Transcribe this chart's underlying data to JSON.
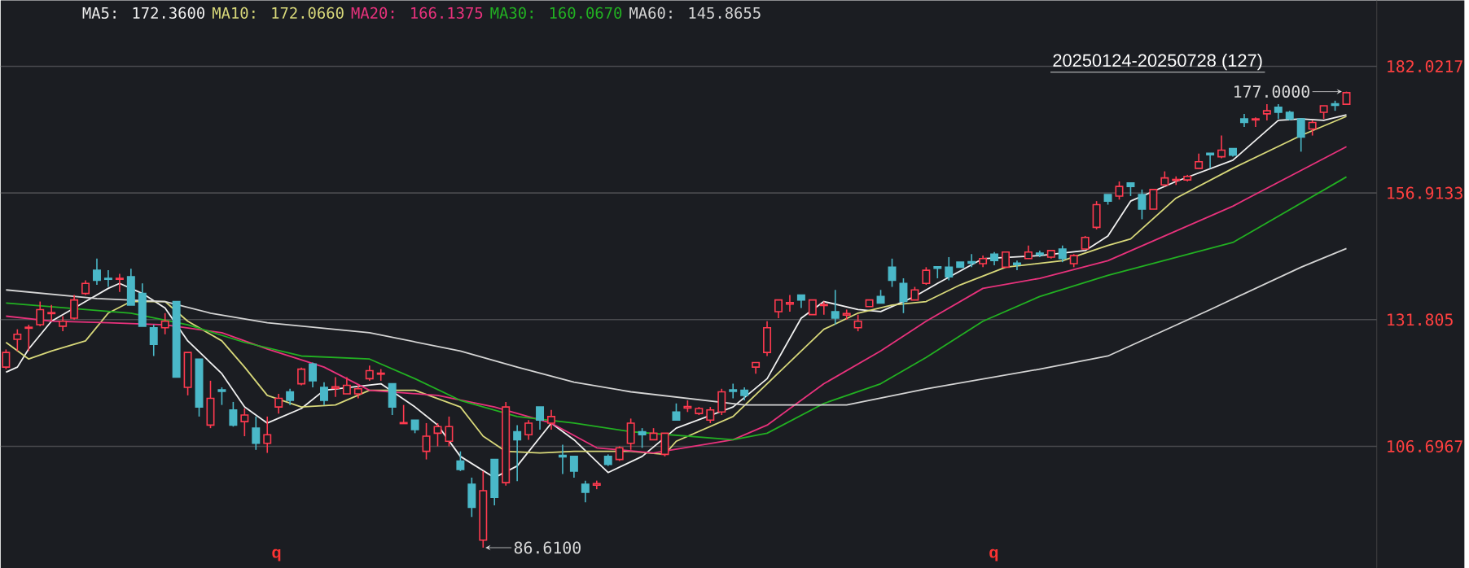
{
  "chart_data": {
    "type": "candlestick",
    "categories": [
      null,
      null,
      null,
      null,
      null,
      null,
      null,
      null,
      null,
      null,
      null,
      null,
      null,
      null,
      null,
      null,
      null,
      null,
      null,
      null,
      null,
      null,
      null,
      null,
      null,
      null,
      null,
      null,
      null,
      null,
      null,
      null,
      null,
      null,
      null,
      null,
      null,
      null,
      null,
      null,
      null,
      null,
      null,
      null,
      null,
      null,
      null,
      null,
      null,
      null,
      null,
      null,
      null,
      null,
      null,
      null,
      null,
      null,
      null,
      null,
      null,
      null,
      null,
      null,
      null,
      null,
      null,
      null,
      null,
      null,
      null,
      null,
      null,
      null,
      null,
      null,
      null,
      null,
      null,
      null,
      null,
      null,
      null,
      null,
      null,
      null,
      null,
      null,
      null,
      null,
      null,
      null,
      null,
      null,
      null,
      null,
      null,
      null,
      null,
      null,
      null,
      null,
      null,
      null,
      null,
      null,
      null,
      null,
      null,
      null,
      null,
      null,
      null,
      null,
      null,
      null,
      null,
      null,
      null
    ],
    "ohlc": [
      [
        122.4,
        125.9,
        122.0,
        125.3
      ],
      [
        127.9,
        129.9,
        125.6,
        128.9
      ],
      [
        130.1,
        130.8,
        125.6,
        130.3
      ],
      [
        130.8,
        135.4,
        130.5,
        133.8
      ],
      [
        133.0,
        134.7,
        131.5,
        133.2
      ],
      [
        130.5,
        132.5,
        129.5,
        131.5
      ],
      [
        132.1,
        136.7,
        131.8,
        135.7
      ],
      [
        137.0,
        139.6,
        136.7,
        139.0
      ],
      [
        141.6,
        143.9,
        138.7,
        139.6
      ],
      [
        140.0,
        141.6,
        138.3,
        139.8
      ],
      [
        139.8,
        140.9,
        137.3,
        140.0
      ],
      [
        140.3,
        141.9,
        134.7,
        134.7
      ],
      [
        137.0,
        139.0,
        130.5,
        130.5
      ],
      [
        130.2,
        130.8,
        124.6,
        126.9
      ],
      [
        130.2,
        133.1,
        128.9,
        131.5
      ],
      [
        135.4,
        135.4,
        120.4,
        120.4
      ],
      [
        118.4,
        125.3,
        116.8,
        125.3
      ],
      [
        124.0,
        124.0,
        112.6,
        114.5
      ],
      [
        110.9,
        119.7,
        110.3,
        116.2
      ],
      [
        117.9,
        118.4,
        114.9,
        117.6
      ],
      [
        113.9,
        115.5,
        110.6,
        110.9
      ],
      [
        111.6,
        114.2,
        108.7,
        112.9
      ],
      [
        110.3,
        112.6,
        106.0,
        107.3
      ],
      [
        107.3,
        112.6,
        105.4,
        109.0
      ],
      [
        114.5,
        117.1,
        113.2,
        116.2
      ],
      [
        117.5,
        118.1,
        114.9,
        115.8
      ],
      [
        119.1,
        122.3,
        118.8,
        122.0
      ],
      [
        123.0,
        123.3,
        118.4,
        119.7
      ],
      [
        118.4,
        119.4,
        114.9,
        115.8
      ],
      [
        118.2,
        120.4,
        116.5,
        118.5
      ],
      [
        117.1,
        120.4,
        117.1,
        118.8
      ],
      [
        117.1,
        118.8,
        116.2,
        118.1
      ],
      [
        120.1,
        122.7,
        119.7,
        121.7
      ],
      [
        121.0,
        122.0,
        119.7,
        121.2
      ],
      [
        119.1,
        119.1,
        112.9,
        114.5
      ],
      [
        111.2,
        114.9,
        111.2,
        111.4
      ],
      [
        111.9,
        111.9,
        109.3,
        110.0
      ],
      [
        105.7,
        111.3,
        104.1,
        108.7
      ],
      [
        109.3,
        111.3,
        106.7,
        110.6
      ],
      [
        107.7,
        112.6,
        106.7,
        110.6
      ],
      [
        103.8,
        105.7,
        101.8,
        102.1
      ],
      [
        99.2,
        100.5,
        92.7,
        94.6
      ],
      [
        88.1,
        101.8,
        86.61,
        97.9
      ],
      [
        104.1,
        104.1,
        95.0,
        96.6
      ],
      [
        99.5,
        115.5,
        98.9,
        114.5
      ],
      [
        109.6,
        110.9,
        99.8,
        108.0
      ],
      [
        109.0,
        111.9,
        108.0,
        111.3
      ],
      [
        114.5,
        114.5,
        110.0,
        111.9
      ],
      [
        111.3,
        113.9,
        110.0,
        112.6
      ],
      [
        104.9,
        107.0,
        101.2,
        104.6
      ],
      [
        104.7,
        104.7,
        100.5,
        101.8
      ],
      [
        99.2,
        99.9,
        95.6,
        97.6
      ],
      [
        99.0,
        99.9,
        98.2,
        99.3
      ],
      [
        104.7,
        105.1,
        102.8,
        103.1
      ],
      [
        104.1,
        106.7,
        103.8,
        106.4
      ],
      [
        107.3,
        112.2,
        106.0,
        111.3
      ],
      [
        109.6,
        110.3,
        106.4,
        109.0
      ],
      [
        108.0,
        110.3,
        108.0,
        109.3
      ],
      [
        105.1,
        109.3,
        104.7,
        109.3
      ],
      [
        113.5,
        115.2,
        111.9,
        111.9
      ],
      [
        114.3,
        115.8,
        113.5,
        114.6
      ],
      [
        113.2,
        114.5,
        112.9,
        114.2
      ],
      [
        111.9,
        114.5,
        111.3,
        113.9
      ],
      [
        113.5,
        118.1,
        112.9,
        117.5
      ],
      [
        117.9,
        119.1,
        116.2,
        117.6
      ],
      [
        117.8,
        118.4,
        115.8,
        116.8
      ],
      [
        122.4,
        123.3,
        121.1,
        123.3
      ],
      [
        125.3,
        131.5,
        124.6,
        130.2
      ],
      [
        133.4,
        135.7,
        132.1,
        135.7
      ],
      [
        134.9,
        136.7,
        133.4,
        135.2
      ],
      [
        136.7,
        136.7,
        134.1,
        135.7
      ],
      [
        132.8,
        135.7,
        132.8,
        135.7
      ],
      [
        134.6,
        135.4,
        132.8,
        134.8
      ],
      [
        133.4,
        137.7,
        130.8,
        132.1
      ],
      [
        132.7,
        133.8,
        131.8,
        133.0
      ],
      [
        130.2,
        132.8,
        129.5,
        131.5
      ],
      [
        134.4,
        135.7,
        134.4,
        135.7
      ],
      [
        136.4,
        137.7,
        135.1,
        135.1
      ],
      [
        142.2,
        143.9,
        138.3,
        139.6
      ],
      [
        139.0,
        140.0,
        133.1,
        135.4
      ],
      [
        135.7,
        138.3,
        135.7,
        137.7
      ],
      [
        139.0,
        142.2,
        138.7,
        141.6
      ],
      [
        142.3,
        142.3,
        140.0,
        142.0
      ],
      [
        142.2,
        144.2,
        139.6,
        140.3
      ],
      [
        143.2,
        143.2,
        142.2,
        142.2
      ],
      [
        143.3,
        144.8,
        142.2,
        143.0
      ],
      [
        142.9,
        144.5,
        142.2,
        143.9
      ],
      [
        144.8,
        145.2,
        142.6,
        143.5
      ],
      [
        142.2,
        145.2,
        142.2,
        145.2
      ],
      [
        143.0,
        143.5,
        141.6,
        142.7
      ],
      [
        143.9,
        146.5,
        143.9,
        145.2
      ],
      [
        145.0,
        145.5,
        144.2,
        144.7
      ],
      [
        144.2,
        145.5,
        143.9,
        145.5
      ],
      [
        145.8,
        146.5,
        143.2,
        143.9
      ],
      [
        142.9,
        144.8,
        142.2,
        144.5
      ],
      [
        145.8,
        148.4,
        145.8,
        148.1
      ],
      [
        150.1,
        155.3,
        149.7,
        154.6
      ],
      [
        156.6,
        156.6,
        154.6,
        155.3
      ],
      [
        156.3,
        159.2,
        155.6,
        158.2
      ],
      [
        158.9,
        158.9,
        156.3,
        158.2
      ],
      [
        156.6,
        157.6,
        151.7,
        153.7
      ],
      [
        153.7,
        157.6,
        153.7,
        157.6
      ],
      [
        158.5,
        161.2,
        158.2,
        159.9
      ],
      [
        159.4,
        160.2,
        158.5,
        159.6
      ],
      [
        159.5,
        160.5,
        159.2,
        160.2
      ],
      [
        161.8,
        164.7,
        161.8,
        163.1
      ],
      [
        164.8,
        164.8,
        161.8,
        164.5
      ],
      [
        164.1,
        168.3,
        163.8,
        165.4
      ],
      [
        165.7,
        165.7,
        164.1,
        164.4
      ],
      [
        171.6,
        172.6,
        170.0,
        170.9
      ],
      [
        171.4,
        171.9,
        170.0,
        171.6
      ],
      [
        172.6,
        174.5,
        171.3,
        173.2
      ],
      [
        173.9,
        174.5,
        171.6,
        172.9
      ],
      [
        172.9,
        173.2,
        171.3,
        171.6
      ],
      [
        171.6,
        171.6,
        165.1,
        168.0
      ],
      [
        169.6,
        171.3,
        168.3,
        170.9
      ],
      [
        172.9,
        174.2,
        171.6,
        174.2
      ],
      [
        174.6,
        175.2,
        173.2,
        174.3
      ],
      [
        174.5,
        177.0,
        174.5,
        176.8
      ]
    ],
    "colors": [
      "#ff3a4f",
      "#ff3a4f",
      "#ff3a4f",
      "#ff3a4f",
      "#ff3a4f",
      "#ff3a4f",
      "#ff3a4f",
      "#ff3a4f",
      "#4ab8c8",
      "#4ab8c8",
      "#ff3a4f",
      "#4ab8c8",
      "#4ab8c8",
      "#4ab8c8",
      "#ff3a4f",
      "#4ab8c8",
      "#ff3a4f",
      "#4ab8c8",
      "#ff3a4f",
      "#4ab8c8",
      "#4ab8c8",
      "#ff3a4f",
      "#4ab8c8",
      "#ff3a4f",
      "#ff3a4f",
      "#4ab8c8",
      "#ff3a4f",
      "#4ab8c8",
      "#4ab8c8",
      "#ff3a4f",
      "#ff3a4f",
      "#ff3a4f",
      "#ff3a4f",
      "#ff3a4f",
      "#4ab8c8",
      "#ff3a4f",
      "#4ab8c8",
      "#ff3a4f",
      "#ff3a4f",
      "#ff3a4f",
      "#4ab8c8",
      "#4ab8c8",
      "#ff3a4f",
      "#4ab8c8",
      "#ff3a4f",
      "#4ab8c8",
      "#ff3a4f",
      "#4ab8c8",
      "#ff3a4f",
      "#4ab8c8",
      "#4ab8c8",
      "#4ab8c8",
      "#ff3a4f",
      "#4ab8c8",
      "#ff3a4f",
      "#ff3a4f",
      "#4ab8c8",
      "#ff3a4f",
      "#ff3a4f",
      "#4ab8c8",
      "#ff3a4f",
      "#ff3a4f",
      "#ff3a4f",
      "#ff3a4f",
      "#4ab8c8",
      "#4ab8c8",
      "#ff3a4f",
      "#ff3a4f",
      "#ff3a4f",
      "#ff3a4f",
      "#4ab8c8",
      "#ff3a4f",
      "#ff3a4f",
      "#4ab8c8",
      "#ff3a4f",
      "#ff3a4f",
      "#ff3a4f",
      "#4ab8c8",
      "#4ab8c8",
      "#4ab8c8",
      "#ff3a4f",
      "#ff3a4f",
      "#4ab8c8",
      "#4ab8c8",
      "#4ab8c8",
      "#4ab8c8",
      "#ff3a4f",
      "#4ab8c8",
      "#ff3a4f",
      "#4ab8c8",
      "#ff3a4f",
      "#4ab8c8",
      "#ff3a4f",
      "#4ab8c8",
      "#ff3a4f",
      "#ff3a4f",
      "#ff3a4f",
      "#4ab8c8",
      "#ff3a4f",
      "#4ab8c8",
      "#4ab8c8",
      "#ff3a4f",
      "#ff3a4f",
      "#ff3a4f",
      "#ff3a4f",
      "#ff3a4f",
      "#4ab8c8",
      "#ff3a4f",
      "#4ab8c8",
      "#4ab8c8",
      "#ff3a4f",
      "#ff3a4f",
      "#4ab8c8",
      "#4ab8c8",
      "#4ab8c8",
      "#ff3a4f",
      "#ff3a4f",
      "#4ab8c8",
      "#ff3a4f"
    ],
    "series": [
      {
        "name": "MA5: 172.3600",
        "type": "line",
        "color": "#f0f0f0",
        "values": [
          121.4,
          122.4,
          126.0,
          null,
          131.5,
          null,
          null,
          135.4,
          null,
          138.0,
          139.0,
          null,
          137.0,
          null,
          134.1,
          null,
          127.6,
          null,
          null,
          121.1,
          null,
          114.5,
          null,
          111.3,
          null,
          null,
          114.2,
          null,
          117.8,
          null,
          null,
          null,
          null,
          119.1,
          null,
          null,
          114.5,
          null,
          110.9,
          null,
          104.7,
          null,
          null,
          100.5,
          null,
          102.8,
          null,
          null,
          111.3,
          null,
          108.0,
          null,
          null,
          101.5,
          null,
          null,
          104.7,
          null,
          null,
          110.3,
          null,
          null,
          null,
          null,
          114.5,
          null,
          null,
          120.1,
          null,
          null,
          132.1,
          null,
          135.4,
          null,
          null,
          133.8,
          null,
          133.4,
          null,
          null,
          136.4,
          null,
          139.0,
          null,
          null,
          null,
          143.9,
          null,
          null,
          null,
          null,
          144.5,
          null,
          null,
          null,
          145.5,
          null,
          148.4,
          null,
          155.3,
          null,
          null,
          null,
          159.2,
          null,
          null,
          null,
          null,
          163.4,
          null,
          null,
          null,
          171.3,
          null,
          171.6,
          null,
          171.3,
          null,
          172.4
        ]
      },
      {
        "name": "MA10: 172.0660",
        "type": "line",
        "color": "#d8d87a",
        "values": [
          127.3,
          null,
          124.0,
          null,
          125.6,
          null,
          null,
          127.6,
          null,
          133.1,
          null,
          135.4,
          null,
          null,
          135.4,
          null,
          131.5,
          null,
          null,
          127.6,
          null,
          122.4,
          null,
          116.8,
          null,
          null,
          114.5,
          null,
          null,
          114.9,
          null,
          null,
          117.8,
          null,
          null,
          null,
          117.8,
          null,
          null,
          null,
          114.5,
          null,
          108.7,
          null,
          105.7,
          null,
          null,
          105.4,
          null,
          null,
          105.7,
          null,
          null,
          null,
          null,
          105.7,
          null,
          null,
          105.1,
          107.7,
          null,
          null,
          null,
          null,
          112.6,
          null,
          null,
          119.1,
          null,
          null,
          125.6,
          null,
          129.9,
          null,
          null,
          133.1,
          null,
          null,
          134.7,
          null,
          null,
          135.4,
          null,
          null,
          138.7,
          null,
          null,
          null,
          142.2,
          null,
          null,
          null,
          null,
          143.5,
          null,
          null,
          null,
          146.5,
          null,
          147.8,
          null,
          null,
          null,
          155.9,
          null,
          null,
          null,
          null,
          161.8,
          null,
          null,
          null,
          null,
          null,
          168.3,
          null,
          null,
          null,
          172.1
        ]
      },
      {
        "name": "MA20: 166.1375",
        "type": "line",
        "color": "#e8327c",
        "values": [
          132.5,
          null,
          null,
          null,
          131.5,
          null,
          null,
          null,
          null,
          131.2,
          null,
          null,
          null,
          null,
          130.8,
          null,
          null,
          null,
          null,
          129.2,
          null,
          null,
          null,
          126.0,
          null,
          null,
          null,
          null,
          122.4,
          null,
          null,
          null,
          117.8,
          null,
          null,
          null,
          null,
          null,
          116.8,
          null,
          null,
          null,
          null,
          114.5,
          null,
          null,
          null,
          null,
          111.3,
          null,
          null,
          null,
          106.4,
          null,
          null,
          null,
          null,
          105.4,
          null,
          null,
          null,
          null,
          null,
          null,
          108.0,
          null,
          null,
          110.9,
          null,
          null,
          null,
          null,
          119.1,
          null,
          null,
          null,
          null,
          125.6,
          null,
          null,
          null,
          131.5,
          null,
          null,
          null,
          null,
          138.0,
          null,
          null,
          null,
          null,
          140.0,
          null,
          null,
          null,
          null,
          null,
          143.5,
          null,
          null,
          null,
          null,
          null,
          null,
          null,
          null,
          null,
          null,
          154.3,
          null,
          null,
          null,
          null,
          null,
          null,
          null,
          null,
          null,
          166.1
        ]
      },
      {
        "name": "MA30: 160.0670",
        "type": "line",
        "color": "#22b022",
        "values": [
          135.1,
          null,
          null,
          null,
          null,
          null,
          null,
          133.8,
          null,
          null,
          null,
          133.1,
          null,
          null,
          null,
          null,
          130.8,
          null,
          null,
          null,
          null,
          127.3,
          null,
          null,
          null,
          null,
          124.6,
          null,
          null,
          null,
          null,
          null,
          124.0,
          null,
          null,
          null,
          120.1,
          null,
          null,
          null,
          115.8,
          null,
          null,
          null,
          null,
          112.6,
          null,
          null,
          null,
          null,
          111.3,
          null,
          null,
          null,
          null,
          109.6,
          null,
          null,
          null,
          null,
          null,
          null,
          null,
          null,
          108.0,
          null,
          null,
          109.3,
          null,
          null,
          null,
          null,
          115.2,
          null,
          null,
          null,
          null,
          119.1,
          null,
          null,
          null,
          124.3,
          null,
          null,
          null,
          null,
          131.5,
          null,
          null,
          null,
          null,
          136.4,
          null,
          null,
          null,
          null,
          null,
          140.6,
          null,
          null,
          null,
          null,
          null,
          null,
          null,
          null,
          null,
          null,
          147.1,
          null,
          null,
          null,
          null,
          null,
          null,
          null,
          null,
          null,
          160.1
        ]
      },
      {
        "name": "MA60: 145.8655",
        "type": "line",
        "color": "#d4d4d4",
        "values": [
          137.7,
          null,
          null,
          null,
          null,
          null,
          null,
          null,
          136.0,
          null,
          null,
          null,
          null,
          null,
          135.4,
          null,
          null,
          null,
          133.1,
          null,
          null,
          null,
          null,
          131.2,
          null,
          null,
          null,
          null,
          null,
          null,
          null,
          null,
          129.2,
          null,
          null,
          null,
          null,
          null,
          null,
          null,
          125.6,
          null,
          null,
          null,
          null,
          122.4,
          null,
          null,
          null,
          null,
          119.4,
          null,
          null,
          null,
          null,
          117.5,
          null,
          null,
          null,
          null,
          null,
          null,
          null,
          null,
          null,
          114.9,
          null,
          null,
          null,
          null,
          null,
          null,
          null,
          null,
          114.9,
          null,
          null,
          null,
          null,
          null,
          null,
          118.1,
          null,
          null,
          null,
          null,
          null,
          null,
          null,
          null,
          null,
          122.0,
          null,
          null,
          null,
          null,
          null,
          124.6,
          null,
          null,
          null,
          null,
          null,
          null,
          null,
          null,
          133.8,
          null,
          null,
          null,
          null,
          null,
          null,
          null,
          142.2,
          null,
          null,
          null,
          145.9
        ]
      }
    ],
    "ylim": [
      82.6,
      195.1
    ],
    "yticks": [
      106.6967,
      131.805,
      156.9133,
      182.0217
    ],
    "grid": "y",
    "legend": "top left",
    "tick_labels": "y",
    "annotations": [
      "20250124-20250728 (127)",
      "177.0000",
      "86.6100",
      "q",
      "q"
    ]
  }
}
